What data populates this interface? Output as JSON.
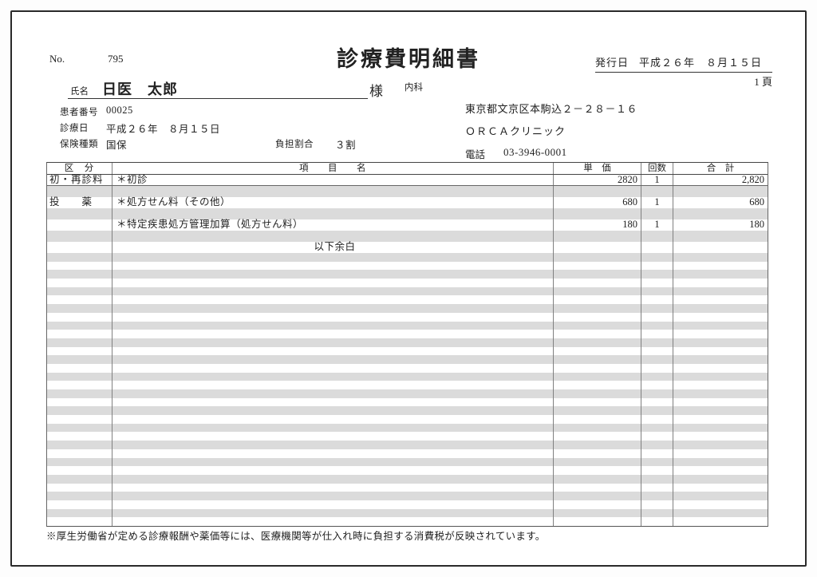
{
  "header": {
    "no_label": "No.",
    "no_value": "795",
    "title": "診療費明細書",
    "issue_label": "発行日",
    "issue_date": "平成２６年　８月１５日",
    "page_number": "1 頁"
  },
  "patient": {
    "name_label": "氏名",
    "name": "日医　太郎",
    "honorific": "様",
    "department": "内科",
    "patient_no_label": "患者番号",
    "patient_no": "00025",
    "visit_date_label": "診療日",
    "visit_date": "平成２６年　８月１５日",
    "insurance_label": "保険種類",
    "insurance_type": "国保",
    "burden_ratio_label": "負担割合",
    "burden_ratio": "３割"
  },
  "clinic": {
    "address": "東京都文京区本駒込２－２８－１６",
    "name": "ＯＲＣＡクリニック",
    "tel_label": "電話",
    "tel_number": "03-3946-0001"
  },
  "table": {
    "headers": {
      "category": "区　分",
      "item": "項　　目　　名",
      "unit_price": "単　価",
      "count": "回数",
      "total": "合　計"
    },
    "rows": [
      {
        "line": 0,
        "category": "初・再診料",
        "item": "＊初診",
        "unit_price": "2820",
        "count": "1",
        "total": "2,820",
        "separator_after": true
      },
      {
        "line": 2,
        "category": "投　　薬",
        "item": "＊処方せん料（その他）",
        "unit_price": "680",
        "count": "1",
        "total": "680"
      },
      {
        "line": 4,
        "item": "＊特定疾患処方管理加算（処方せん料）",
        "unit_price": "180",
        "count": "1",
        "total": "180"
      },
      {
        "line": 6,
        "item": "以下余白",
        "item_align": "center"
      }
    ],
    "total_visible_lines": 39,
    "content_section_lines": 7
  },
  "footnote": "※厚生労働省が定める診療報酬や薬価等には、医療機関等が仕入れ時に負担する消費税が反映されています。"
}
